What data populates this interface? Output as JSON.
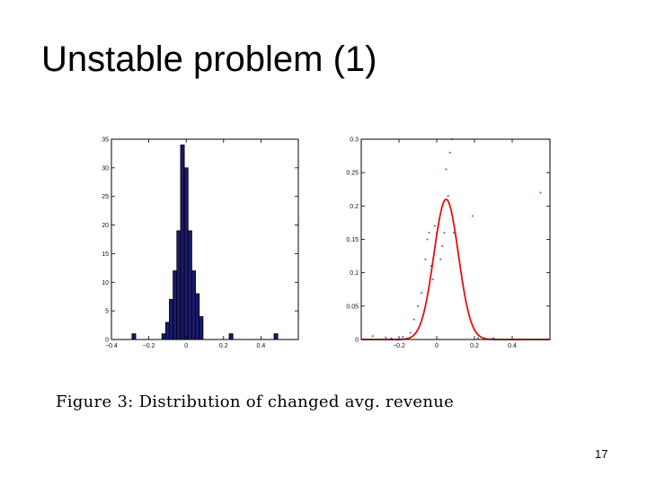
{
  "slide": {
    "title": "Unstable problem (1)",
    "page_number": "17"
  },
  "caption": "Figure 3:  Distribution of changed avg. revenue",
  "chart_data": [
    {
      "type": "bar",
      "xlim": [
        -0.4,
        0.6
      ],
      "ylim": [
        0,
        35
      ],
      "x_ticks": [
        -0.4,
        -0.2,
        0,
        0.2,
        0.4
      ],
      "x_tick_labels": [
        "−0.4",
        "−0.2",
        "0",
        "0.2",
        "0.4"
      ],
      "y_ticks": [
        0,
        5,
        10,
        15,
        20,
        25,
        30,
        35
      ],
      "y_tick_labels": [
        "0",
        "5",
        "10",
        "15",
        "20",
        "25",
        "30",
        "35"
      ],
      "bin_width": 0.02,
      "bins": [
        {
          "x": -0.28,
          "count": 1
        },
        {
          "x": -0.12,
          "count": 1
        },
        {
          "x": -0.1,
          "count": 3
        },
        {
          "x": -0.08,
          "count": 7
        },
        {
          "x": -0.06,
          "count": 12
        },
        {
          "x": -0.04,
          "count": 19
        },
        {
          "x": -0.02,
          "count": 34
        },
        {
          "x": 0.0,
          "count": 30
        },
        {
          "x": 0.02,
          "count": 19
        },
        {
          "x": 0.04,
          "count": 12
        },
        {
          "x": 0.06,
          "count": 8
        },
        {
          "x": 0.08,
          "count": 4
        },
        {
          "x": 0.24,
          "count": 1
        },
        {
          "x": 0.48,
          "count": 1
        }
      ],
      "bar_color": "#1a1a6e",
      "grid": false
    },
    {
      "type": "scatter",
      "xlim": [
        -0.4,
        0.6
      ],
      "ylim": [
        0,
        0.3
      ],
      "x_ticks": [
        -0.2,
        0,
        0.2,
        0.4
      ],
      "x_tick_labels": [
        "−0.2",
        "0",
        "0.2",
        "0.4"
      ],
      "y_ticks": [
        0,
        0.05,
        0.1,
        0.15,
        0.2,
        0.25,
        0.3
      ],
      "y_tick_labels": [
        "0",
        "0.05",
        "0.1",
        "0.15",
        "0.2",
        "0.25",
        "0.3"
      ],
      "curve": {
        "mean": 0.05,
        "sd": 0.065,
        "peak": 0.21,
        "color": "#e01010"
      },
      "points": [
        {
          "x": -0.34,
          "y": 0.005
        },
        {
          "x": -0.27,
          "y": 0.003
        },
        {
          "x": -0.24,
          "y": 0.002
        },
        {
          "x": -0.18,
          "y": 0.004
        },
        {
          "x": -0.14,
          "y": 0.01
        },
        {
          "x": -0.12,
          "y": 0.03
        },
        {
          "x": -0.1,
          "y": 0.05
        },
        {
          "x": -0.08,
          "y": 0.07
        },
        {
          "x": -0.06,
          "y": 0.12
        },
        {
          "x": -0.05,
          "y": 0.15
        },
        {
          "x": -0.04,
          "y": 0.16
        },
        {
          "x": -0.03,
          "y": 0.11
        },
        {
          "x": -0.02,
          "y": 0.09
        },
        {
          "x": -0.01,
          "y": 0.17
        },
        {
          "x": 0.0,
          "y": 0.16
        },
        {
          "x": 0.02,
          "y": 0.12
        },
        {
          "x": 0.03,
          "y": 0.14
        },
        {
          "x": 0.04,
          "y": 0.16
        },
        {
          "x": 0.05,
          "y": 0.255
        },
        {
          "x": 0.06,
          "y": 0.215
        },
        {
          "x": 0.07,
          "y": 0.28
        },
        {
          "x": 0.08,
          "y": 0.3
        },
        {
          "x": 0.09,
          "y": 0.16
        },
        {
          "x": 0.19,
          "y": 0.185
        },
        {
          "x": 0.22,
          "y": 0.002
        },
        {
          "x": 0.3,
          "y": 0.002
        },
        {
          "x": 0.55,
          "y": 0.22
        }
      ],
      "point_color": "#3b5bd6",
      "grid": false
    }
  ]
}
